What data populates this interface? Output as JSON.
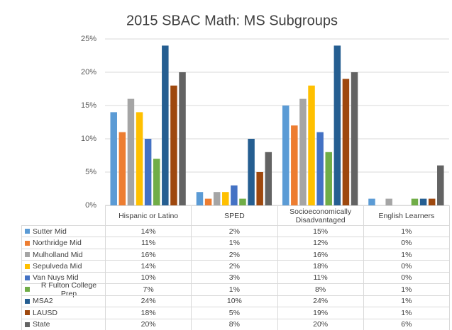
{
  "chart_data": {
    "type": "bar",
    "title": "2015 SBAC Math: MS Subgroups",
    "categories": [
      "Hispanic or Latino",
      "SPED",
      "Socioeconomically Disadvantaged",
      "English Learners"
    ],
    "ylim": [
      0,
      25
    ],
    "yticks": [
      {
        "value": 0,
        "label": "0%"
      },
      {
        "value": 5,
        "label": "5%"
      },
      {
        "value": 10,
        "label": "10%"
      },
      {
        "value": 15,
        "label": "15%"
      },
      {
        "value": 20,
        "label": "20%"
      },
      {
        "value": 25,
        "label": "25%"
      }
    ],
    "grid": true,
    "series": [
      {
        "name": "Sutter Mid",
        "color": "#5b9bd5",
        "values": [
          14,
          2,
          15,
          1
        ],
        "value_labels": [
          "14%",
          "2%",
          "15%",
          "1%"
        ]
      },
      {
        "name": "Northridge Mid",
        "color": "#ed7d31",
        "values": [
          11,
          1,
          12,
          0
        ],
        "value_labels": [
          "11%",
          "1%",
          "12%",
          "0%"
        ]
      },
      {
        "name": "Mulholland Mid",
        "color": "#a5a5a5",
        "values": [
          16,
          2,
          16,
          1
        ],
        "value_labels": [
          "16%",
          "2%",
          "16%",
          "1%"
        ]
      },
      {
        "name": "Sepulveda Mid",
        "color": "#ffc000",
        "values": [
          14,
          2,
          18,
          0
        ],
        "value_labels": [
          "14%",
          "2%",
          "18%",
          "0%"
        ]
      },
      {
        "name": "Van Nuys Mid",
        "color": "#4472c4",
        "values": [
          10,
          3,
          11,
          0
        ],
        "value_labels": [
          "10%",
          "3%",
          "11%",
          "0%"
        ]
      },
      {
        "name": "R Fulton College Prep",
        "color": "#70ad47",
        "values": [
          7,
          1,
          8,
          1
        ],
        "value_labels": [
          "7%",
          "1%",
          "8%",
          "1%"
        ]
      },
      {
        "name": "MSA2",
        "color": "#255e91",
        "values": [
          24,
          10,
          24,
          1
        ],
        "value_labels": [
          "24%",
          "10%",
          "24%",
          "1%"
        ]
      },
      {
        "name": "LAUSD",
        "color": "#9e480e",
        "values": [
          18,
          5,
          19,
          1
        ],
        "value_labels": [
          "18%",
          "5%",
          "19%",
          "1%"
        ]
      },
      {
        "name": "State",
        "color": "#636363",
        "values": [
          20,
          8,
          20,
          6
        ],
        "value_labels": [
          "20%",
          "8%",
          "20%",
          "6%"
        ]
      }
    ]
  }
}
